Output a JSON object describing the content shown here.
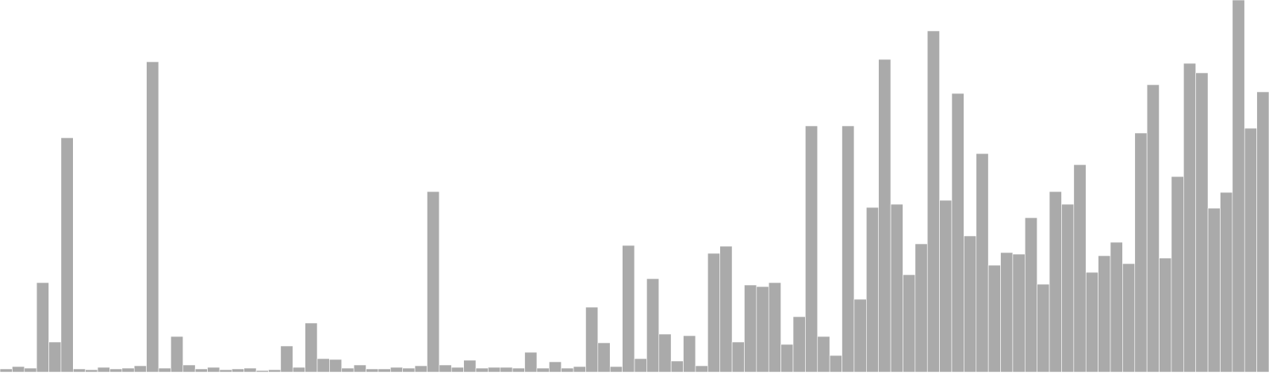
{
  "chart_data": {
    "type": "bar",
    "ylim": [
      0,
      470
    ],
    "bar_color": "#aaaaaa",
    "bar_stroke": "#ffffff",
    "background": "#ffffff",
    "grid": false,
    "legend": "none",
    "values": [
      4,
      7,
      5,
      113,
      38,
      296,
      4,
      3,
      6,
      4,
      5,
      8,
      392,
      5,
      45,
      9,
      4,
      6,
      3,
      4,
      5,
      2,
      3,
      33,
      6,
      62,
      17,
      16,
      5,
      9,
      4,
      4,
      6,
      5,
      8,
      228,
      9,
      6,
      15,
      5,
      6,
      6,
      5,
      25,
      5,
      13,
      5,
      7,
      82,
      37,
      7,
      160,
      17,
      118,
      48,
      14,
      46,
      8,
      150,
      159,
      38,
      110,
      108,
      113,
      35,
      70,
      311,
      45,
      21,
      311,
      92,
      208,
      395,
      212,
      123,
      162,
      431,
      217,
      352,
      172,
      276,
      135,
      151,
      149,
      195,
      111,
      228,
      212,
      262,
      126,
      147,
      164,
      137,
      302,
      363,
      144,
      247,
      390,
      378,
      207,
      227,
      470,
      308,
      354
    ]
  }
}
